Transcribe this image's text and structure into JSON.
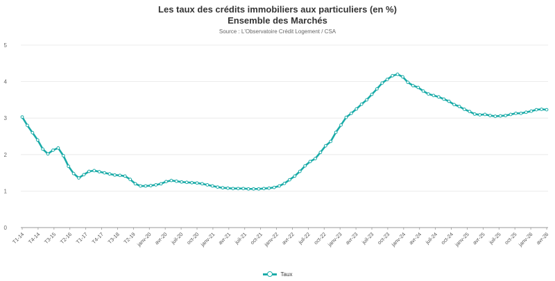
{
  "chart_data": {
    "type": "line",
    "title": "Les taux des crédits immobiliers aux particuliers (en %)",
    "subtitle": "Ensemble des Marchés",
    "source": "Source : L'Observatoire Crédit Logement / CSA",
    "ylim": [
      0,
      5
    ],
    "yticks": [
      0,
      1,
      2,
      3,
      4,
      5
    ],
    "grid": true,
    "legend_position": "bottom",
    "line_color": "#1aaba8",
    "tick_labels": [
      "T1-14",
      "T4-14",
      "T3-15",
      "T2-16",
      "T1-17",
      "T4-17",
      "T3-18",
      "T2-19",
      "janv-20",
      "avr-20",
      "juil-20",
      "oct-20",
      "janv-21",
      "avr-21",
      "juil-21",
      "oct-21",
      "janv-22",
      "avr-22",
      "juil-22",
      "oct-22",
      "janv-23",
      "avr-23",
      "juil-23",
      "oct-23",
      "janv-24",
      "avr-24",
      "juil-24",
      "oct-24",
      "janv-25",
      "avr-25",
      "juil-25",
      "oct-25",
      "janv-26",
      "avr-26"
    ],
    "series": [
      {
        "name": "Taux",
        "values": [
          3.03,
          2.8,
          2.6,
          2.4,
          2.15,
          2.02,
          2.12,
          2.18,
          1.97,
          1.68,
          1.48,
          1.36,
          1.45,
          1.54,
          1.56,
          1.53,
          1.5,
          1.47,
          1.44,
          1.43,
          1.41,
          1.32,
          1.2,
          1.14,
          1.14,
          1.15,
          1.17,
          1.2,
          1.26,
          1.29,
          1.27,
          1.25,
          1.24,
          1.23,
          1.22,
          1.2,
          1.17,
          1.14,
          1.11,
          1.09,
          1.08,
          1.07,
          1.07,
          1.07,
          1.06,
          1.06,
          1.06,
          1.07,
          1.08,
          1.1,
          1.14,
          1.21,
          1.31,
          1.41,
          1.54,
          1.69,
          1.81,
          1.89,
          2.06,
          2.24,
          2.36,
          2.61,
          2.81,
          3.02,
          3.13,
          3.25,
          3.38,
          3.5,
          3.65,
          3.8,
          3.96,
          4.06,
          4.16,
          4.2,
          4.13,
          3.98,
          3.89,
          3.84,
          3.74,
          3.66,
          3.62,
          3.58,
          3.52,
          3.46,
          3.37,
          3.32,
          3.24,
          3.18,
          3.11,
          3.09,
          3.1,
          3.07,
          3.05,
          3.06,
          3.07,
          3.1,
          3.13,
          3.13,
          3.16,
          3.19,
          3.23,
          3.24,
          3.23
        ]
      }
    ]
  }
}
